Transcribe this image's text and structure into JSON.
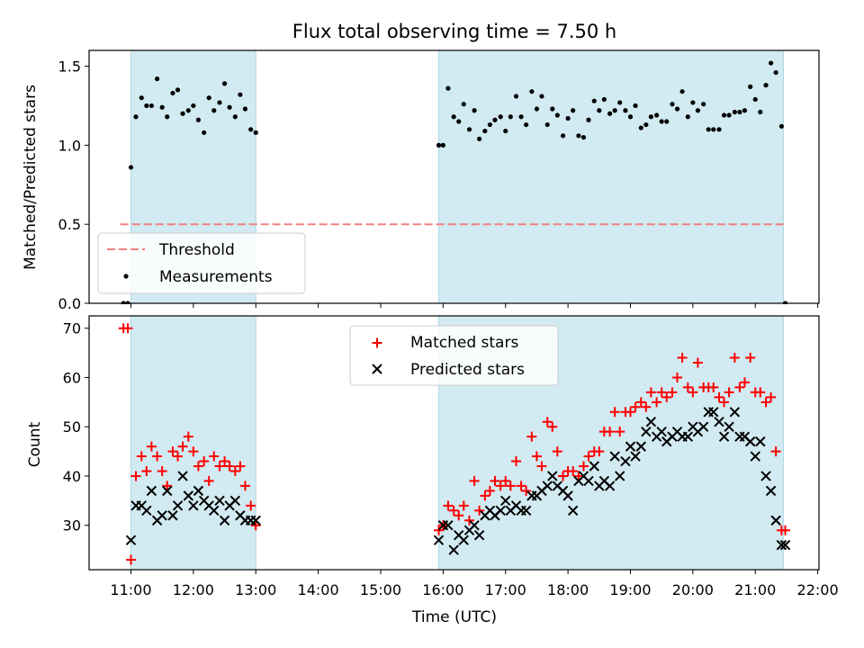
{
  "chart_data": {
    "title": "Flux total observing time = 7.50 h",
    "xlabel": "Time (UTC)",
    "x_unit": "hours UTC",
    "xlim": [
      10.33,
      22.02
    ],
    "x_ticks": [
      11,
      12,
      13,
      14,
      15,
      16,
      17,
      18,
      19,
      20,
      21,
      22
    ],
    "x_tick_labels": [
      "11:00",
      "12:00",
      "13:00",
      "14:00",
      "15:00",
      "16:00",
      "17:00",
      "18:00",
      "19:00",
      "20:00",
      "21:00",
      "22:00"
    ],
    "observing_windows": [
      [
        11.0,
        13.0
      ],
      [
        15.93,
        21.45
      ]
    ],
    "window_color": "#add8e6",
    "panels": [
      {
        "type": "scatter",
        "ylabel": "Matched/Predicted stars",
        "ylim": [
          0,
          1.6
        ],
        "y_ticks": [
          0.0,
          0.5,
          1.0,
          1.5
        ],
        "y_tick_labels": [
          "0.0",
          "0.5",
          "1.0",
          "1.5"
        ],
        "legend_position": "lower-left",
        "threshold": {
          "name": "Threshold",
          "value": 0.5,
          "x_range": [
            10.83,
            21.45
          ],
          "color": "#f08080",
          "style": "dashed"
        },
        "series": [
          {
            "name": "Measurements",
            "marker": "dot",
            "color": "#000000",
            "x": [
              10.88,
              10.95,
              11.0,
              11.08,
              11.17,
              11.25,
              11.33,
              11.42,
              11.5,
              11.58,
              11.67,
              11.75,
              11.83,
              11.92,
              12.0,
              12.08,
              12.17,
              12.25,
              12.33,
              12.42,
              12.5,
              12.58,
              12.67,
              12.75,
              12.83,
              12.92,
              13.0,
              15.93,
              16.0,
              16.08,
              16.17,
              16.25,
              16.33,
              16.42,
              16.5,
              16.58,
              16.67,
              16.75,
              16.83,
              16.92,
              17.0,
              17.08,
              17.17,
              17.25,
              17.33,
              17.42,
              17.5,
              17.58,
              17.67,
              17.75,
              17.83,
              17.92,
              18.0,
              18.08,
              18.17,
              18.25,
              18.33,
              18.42,
              18.5,
              18.58,
              18.67,
              18.75,
              18.83,
              18.92,
              19.0,
              19.08,
              19.17,
              19.25,
              19.33,
              19.42,
              19.5,
              19.58,
              19.67,
              19.75,
              19.83,
              19.92,
              20.0,
              20.08,
              20.17,
              20.25,
              20.33,
              20.42,
              20.5,
              20.58,
              20.67,
              20.75,
              20.83,
              20.92,
              21.0,
              21.08,
              21.17,
              21.25,
              21.33,
              21.42,
              21.48
            ],
            "y": [
              0.0,
              0.0,
              0.86,
              1.18,
              1.3,
              1.25,
              1.25,
              1.42,
              1.24,
              1.18,
              1.33,
              1.35,
              1.2,
              1.22,
              1.25,
              1.16,
              1.08,
              1.3,
              1.22,
              1.27,
              1.39,
              1.24,
              1.18,
              1.32,
              1.23,
              1.1,
              1.08,
              1.0,
              1.0,
              1.36,
              1.18,
              1.15,
              1.26,
              1.1,
              1.22,
              1.04,
              1.09,
              1.13,
              1.16,
              1.18,
              1.09,
              1.18,
              1.31,
              1.18,
              1.13,
              1.34,
              1.23,
              1.31,
              1.13,
              1.23,
              1.19,
              1.06,
              1.17,
              1.22,
              1.06,
              1.05,
              1.16,
              1.28,
              1.22,
              1.29,
              1.2,
              1.22,
              1.27,
              1.22,
              1.18,
              1.25,
              1.11,
              1.13,
              1.18,
              1.19,
              1.15,
              1.15,
              1.26,
              1.23,
              1.34,
              1.18,
              1.27,
              1.22,
              1.26,
              1.1,
              1.1,
              1.1,
              1.19,
              1.19,
              1.21,
              1.21,
              1.22,
              1.37,
              1.29,
              1.21,
              1.38,
              1.52,
              1.46,
              1.12,
              0.0
            ]
          }
        ]
      },
      {
        "type": "scatter",
        "ylabel": "Count",
        "ylim": [
          21,
          72.5
        ],
        "y_ticks": [
          30,
          40,
          50,
          60,
          70
        ],
        "y_tick_labels": [
          "30",
          "40",
          "50",
          "60",
          "70"
        ],
        "legend_position": "top-center",
        "series": [
          {
            "name": "Matched stars",
            "marker": "plus",
            "color": "#ff0000",
            "x": [
              10.88,
              10.95,
              11.0,
              11.08,
              11.17,
              11.25,
              11.33,
              11.42,
              11.5,
              11.58,
              11.67,
              11.75,
              11.83,
              11.92,
              12.0,
              12.08,
              12.17,
              12.25,
              12.33,
              12.42,
              12.5,
              12.58,
              12.67,
              12.75,
              12.83,
              12.92,
              13.0,
              15.93,
              16.0,
              16.08,
              16.17,
              16.25,
              16.33,
              16.42,
              16.5,
              16.58,
              16.67,
              16.75,
              16.83,
              16.92,
              17.0,
              17.08,
              17.17,
              17.25,
              17.33,
              17.42,
              17.5,
              17.58,
              17.67,
              17.75,
              17.83,
              17.92,
              18.0,
              18.08,
              18.17,
              18.25,
              18.33,
              18.42,
              18.5,
              18.58,
              18.67,
              18.75,
              18.83,
              18.92,
              19.0,
              19.08,
              19.17,
              19.25,
              19.33,
              19.42,
              19.5,
              19.58,
              19.67,
              19.75,
              19.83,
              19.92,
              20.0,
              20.08,
              20.17,
              20.25,
              20.33,
              20.42,
              20.5,
              20.58,
              20.67,
              20.75,
              20.83,
              20.92,
              21.0,
              21.08,
              21.17,
              21.25,
              21.33,
              21.42,
              21.48
            ],
            "y": [
              70,
              70,
              23,
              40,
              44,
              41,
              46,
              44,
              41,
              38,
              45,
              44,
              46,
              48,
              45,
              42,
              43,
              39,
              44,
              42,
              43,
              42,
              41,
              42,
              38,
              34,
              30,
              29,
              30,
              34,
              33,
              32,
              34,
              31,
              39,
              33,
              36,
              37,
              39,
              38,
              39,
              38,
              43,
              38,
              37,
              48,
              44,
              42,
              51,
              50,
              45,
              40,
              41,
              41,
              40,
              42,
              44,
              45,
              45,
              49,
              49,
              53,
              49,
              53,
              53,
              54,
              55,
              54,
              57,
              55,
              57,
              56,
              57,
              60,
              64,
              58,
              57,
              63,
              58,
              58,
              58,
              56,
              55,
              57,
              64,
              58,
              59,
              64,
              57,
              57,
              55,
              56,
              45,
              29,
              29
            ]
          },
          {
            "name": "Predicted stars",
            "marker": "x",
            "color": "#000000",
            "x": [
              11.0,
              11.08,
              11.17,
              11.25,
              11.33,
              11.42,
              11.5,
              11.58,
              11.67,
              11.75,
              11.83,
              11.92,
              12.0,
              12.08,
              12.17,
              12.25,
              12.33,
              12.42,
              12.5,
              12.58,
              12.67,
              12.75,
              12.83,
              12.92,
              13.0,
              15.93,
              16.0,
              16.08,
              16.17,
              16.25,
              16.33,
              16.42,
              16.5,
              16.58,
              16.67,
              16.75,
              16.83,
              16.92,
              17.0,
              17.08,
              17.17,
              17.25,
              17.33,
              17.42,
              17.5,
              17.58,
              17.67,
              17.75,
              17.83,
              17.92,
              18.0,
              18.08,
              18.17,
              18.25,
              18.33,
              18.42,
              18.5,
              18.58,
              18.67,
              18.75,
              18.83,
              18.92,
              19.0,
              19.08,
              19.17,
              19.25,
              19.33,
              19.42,
              19.5,
              19.58,
              19.67,
              19.75,
              19.83,
              19.92,
              20.0,
              20.08,
              20.17,
              20.25,
              20.33,
              20.42,
              20.5,
              20.58,
              20.67,
              20.75,
              20.83,
              20.92,
              21.0,
              21.08,
              21.17,
              21.25,
              21.33,
              21.42,
              21.48
            ],
            "y": [
              27,
              34,
              34,
              33,
              37,
              31,
              32,
              37,
              32,
              34,
              40,
              36,
              34,
              37,
              35,
              34,
              33,
              35,
              31,
              34,
              35,
              32,
              31,
              31,
              31,
              27,
              30,
              30,
              25,
              28,
              27,
              29,
              30,
              28,
              32,
              33,
              32,
              33,
              35,
              33,
              34,
              33,
              33,
              36,
              36,
              37,
              38,
              40,
              38,
              37,
              36,
              33,
              39,
              40,
              39,
              42,
              38,
              39,
              38,
              44,
              40,
              43,
              46,
              44,
              46,
              49,
              51,
              48,
              49,
              47,
              48,
              49,
              48,
              48,
              50,
              49,
              50,
              53,
              53,
              51,
              48,
              50,
              53,
              48,
              48,
              47,
              44,
              47,
              40,
              37,
              31,
              26,
              26
            ]
          }
        ]
      }
    ]
  }
}
